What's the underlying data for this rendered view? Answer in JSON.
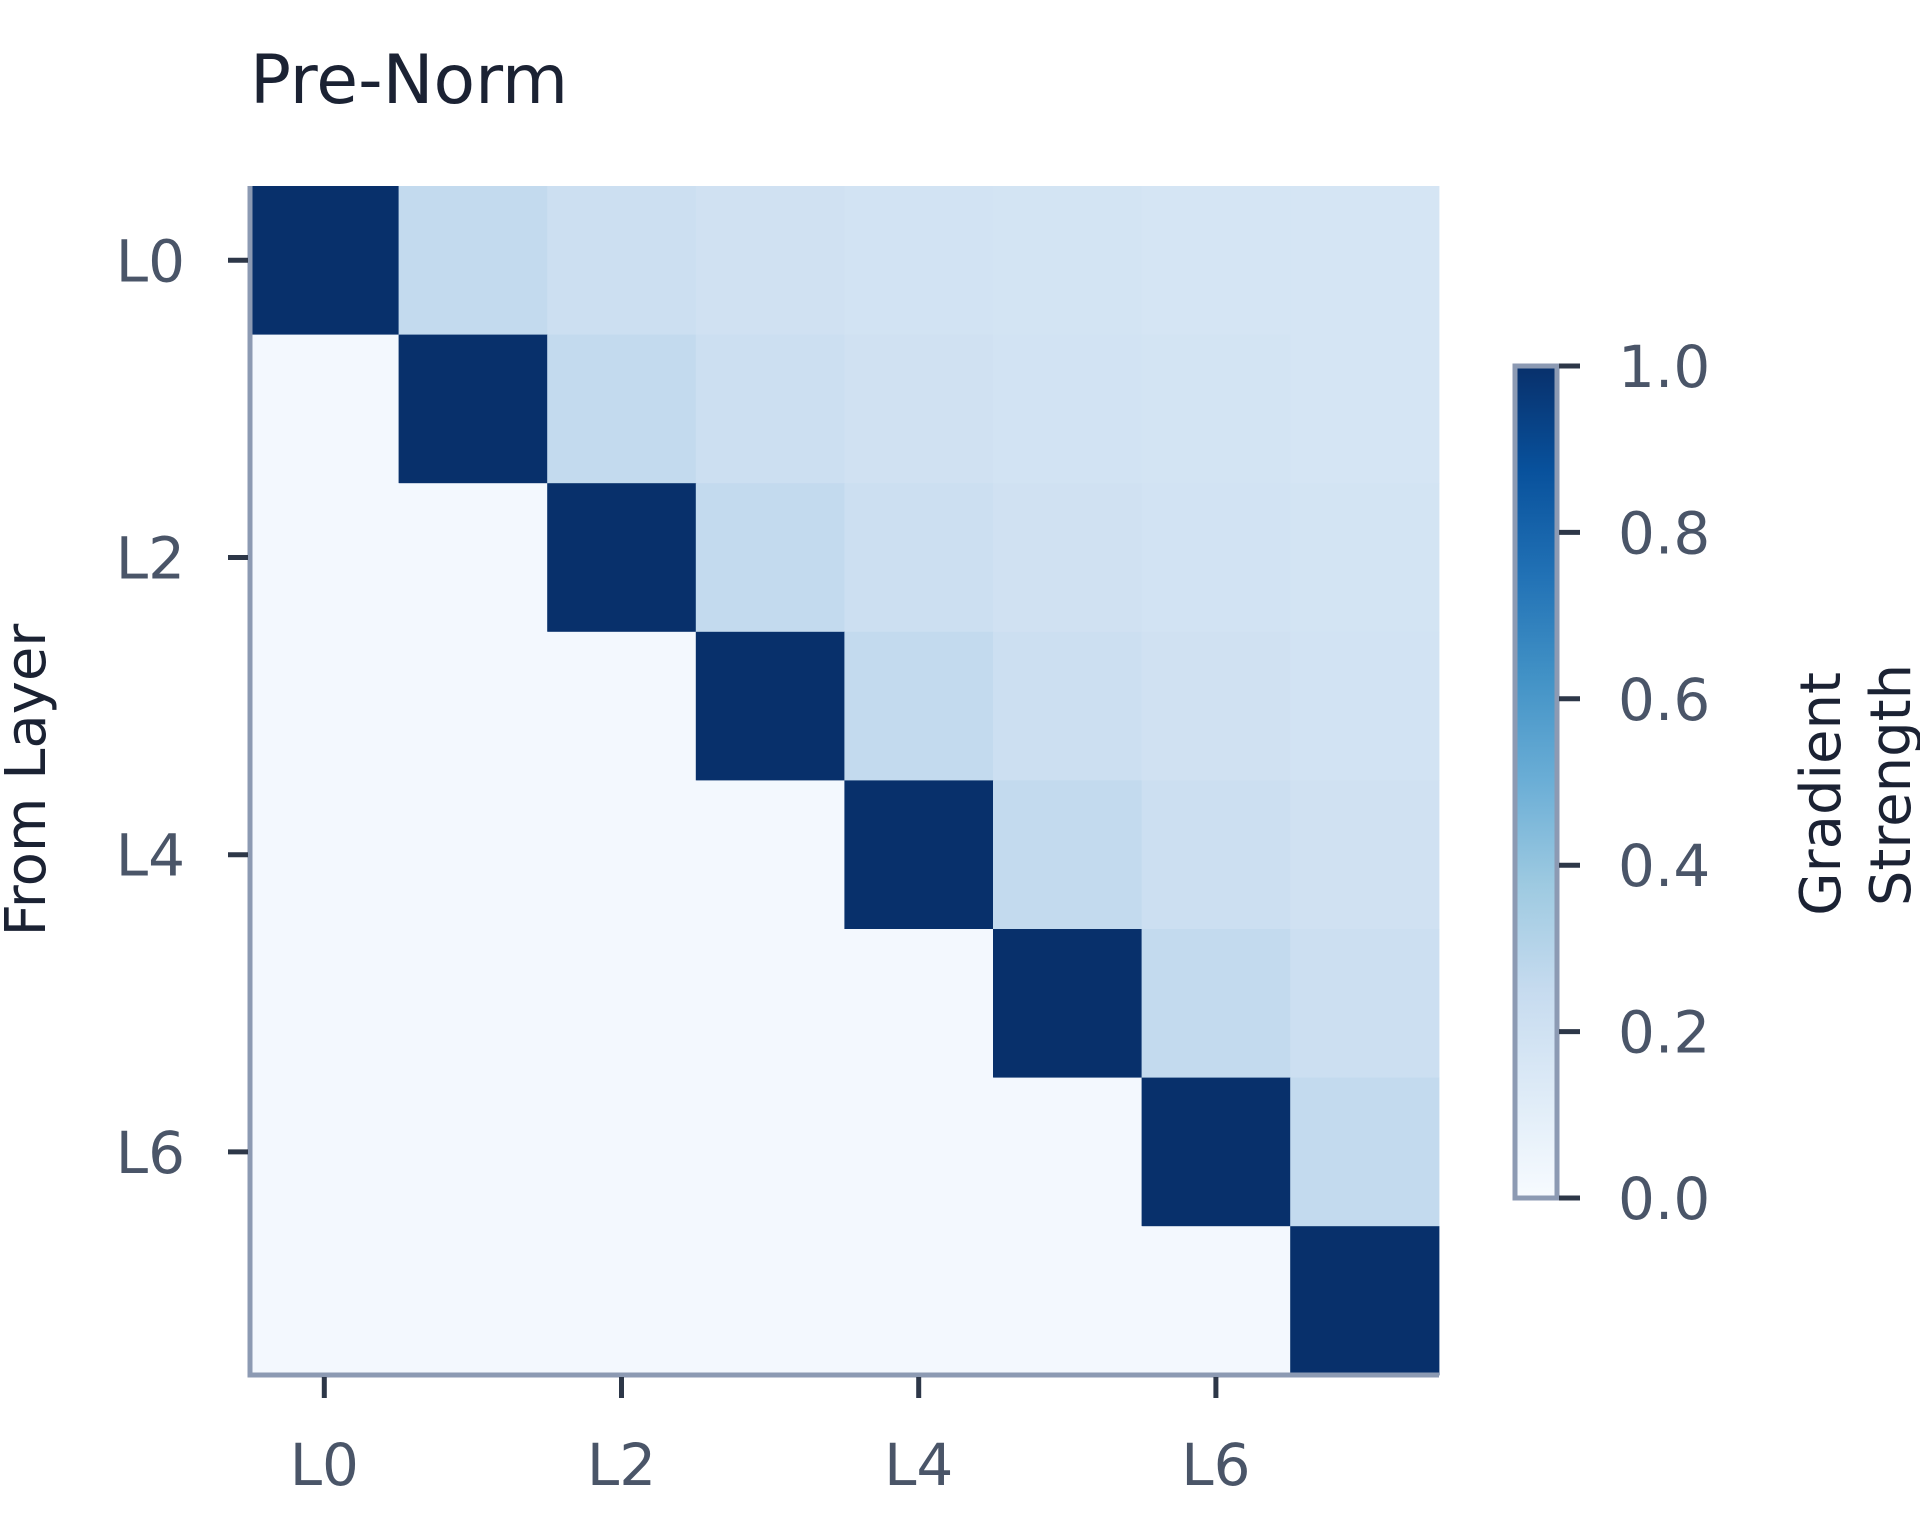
{
  "chart_data": {
    "type": "heatmap",
    "title": "Pre-Norm",
    "ylabel": "From Layer",
    "xlabel": "",
    "x_tick_labels": [
      "L0",
      "L2",
      "L4",
      "L6"
    ],
    "y_tick_labels": [
      "L0",
      "L2",
      "L4",
      "L6"
    ],
    "x_tick_indices": [
      0,
      2,
      4,
      6
    ],
    "y_tick_indices": [
      0,
      2,
      4,
      6
    ],
    "matrix_size": 8,
    "values": [
      [
        1.0,
        0.26,
        0.22,
        0.2,
        0.19,
        0.18,
        0.17,
        0.17
      ],
      [
        0.02,
        1.0,
        0.26,
        0.22,
        0.2,
        0.19,
        0.18,
        0.17
      ],
      [
        0.02,
        0.02,
        1.0,
        0.26,
        0.22,
        0.2,
        0.19,
        0.18
      ],
      [
        0.02,
        0.02,
        0.02,
        1.0,
        0.26,
        0.22,
        0.2,
        0.19
      ],
      [
        0.02,
        0.02,
        0.02,
        0.02,
        1.0,
        0.26,
        0.22,
        0.2
      ],
      [
        0.02,
        0.02,
        0.02,
        0.02,
        0.02,
        1.0,
        0.26,
        0.22
      ],
      [
        0.02,
        0.02,
        0.02,
        0.02,
        0.02,
        0.02,
        1.0,
        0.26
      ],
      [
        0.02,
        0.02,
        0.02,
        0.02,
        0.02,
        0.02,
        0.02,
        1.0
      ]
    ],
    "colorbar": {
      "label": "Gradient Strength",
      "range": [
        0.0,
        1.0
      ],
      "ticks": [
        "0.0",
        "0.2",
        "0.4",
        "0.6",
        "0.8",
        "1.0"
      ],
      "colormap": "Blues",
      "low_color": "#f7fbff",
      "high_color": "#08306b"
    },
    "grid": false
  }
}
